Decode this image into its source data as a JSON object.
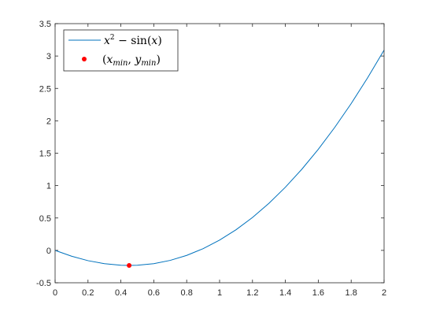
{
  "chart_data": {
    "type": "line",
    "title": "",
    "xlabel": "",
    "ylabel": "",
    "xlim": [
      0,
      2
    ],
    "ylim": [
      -0.5,
      3.5
    ],
    "x_ticks": [
      0,
      0.2,
      0.4,
      0.6,
      0.8,
      1,
      1.2,
      1.4,
      1.6,
      1.8,
      2
    ],
    "x_tick_labels": [
      "0",
      "0.2",
      "0.4",
      "0.6",
      "0.8",
      "1",
      "1.2",
      "1.4",
      "1.6",
      "1.8",
      "2"
    ],
    "y_ticks": [
      -0.5,
      0,
      0.5,
      1,
      1.5,
      2,
      2.5,
      3,
      3.5
    ],
    "y_tick_labels": [
      "-0.5",
      "0",
      "0.5",
      "1",
      "1.5",
      "2",
      "2.5",
      "3",
      "3.5"
    ],
    "grid": false,
    "legend_position": "top-left",
    "series": [
      {
        "name": "x² − sin(x)",
        "kind": "line",
        "color": "#0072BD",
        "x": [
          0,
          0.1,
          0.2,
          0.3,
          0.4,
          0.45,
          0.5,
          0.6,
          0.7,
          0.8,
          0.9,
          1.0,
          1.1,
          1.2,
          1.3,
          1.4,
          1.5,
          1.6,
          1.7,
          1.8,
          1.9,
          2.0
        ],
        "y": [
          0,
          -0.0898,
          -0.1587,
          -0.2055,
          -0.2294,
          -0.2325,
          -0.2294,
          -0.2046,
          -0.1542,
          -0.0774,
          0.0267,
          0.1585,
          0.3188,
          0.508,
          0.7264,
          0.9746,
          1.2525,
          1.5604,
          1.8983,
          2.2662,
          2.6637,
          3.0907
        ]
      },
      {
        "name": "(x_min, y_min)",
        "kind": "scatter",
        "color": "#FF0000",
        "x": [
          0.4502
        ],
        "y": [
          -0.2324
        ]
      }
    ]
  }
}
